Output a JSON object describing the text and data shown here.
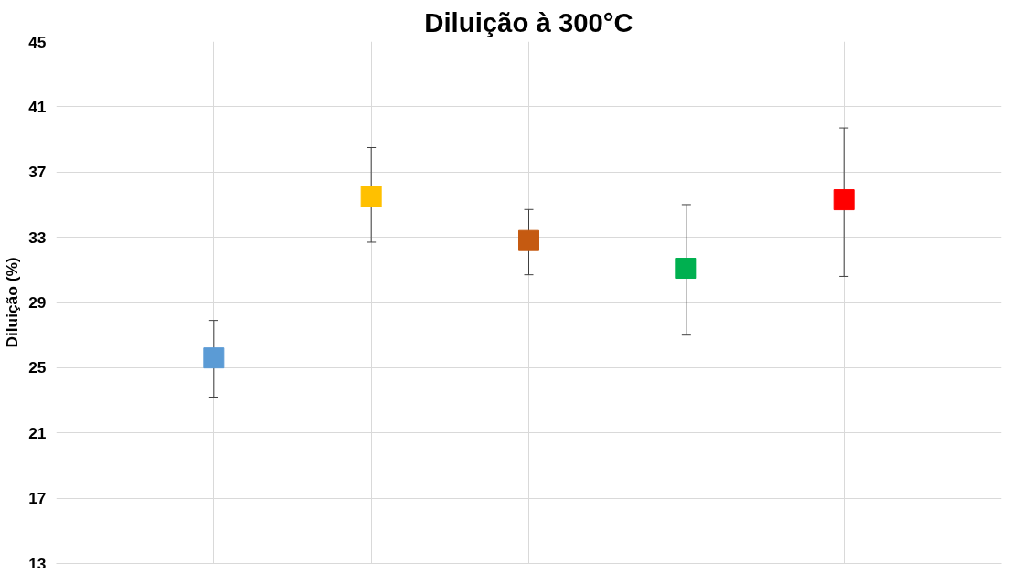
{
  "chart_data": {
    "type": "scatter",
    "title": "Diluição à 300°C",
    "ylabel": "Diluição (%)",
    "categories": [
      null,
      null,
      null,
      null,
      null
    ],
    "values": [
      25.6,
      35.5,
      32.8,
      31.1,
      35.3
    ],
    "colors": [
      "#5b9bd5",
      "#ffc000",
      "#c55a11",
      "#00b050",
      "#ff0000"
    ],
    "errors": [
      [
        23.2,
        27.9
      ],
      [
        32.7,
        38.5
      ],
      [
        30.7,
        34.7
      ],
      [
        27.0,
        35.0
      ],
      [
        30.6,
        39.7
      ]
    ],
    "ylim": [
      13,
      45
    ],
    "yticks": [
      13,
      17,
      21,
      25,
      29,
      33,
      37,
      41,
      45
    ],
    "grid": true,
    "marker": "square"
  }
}
